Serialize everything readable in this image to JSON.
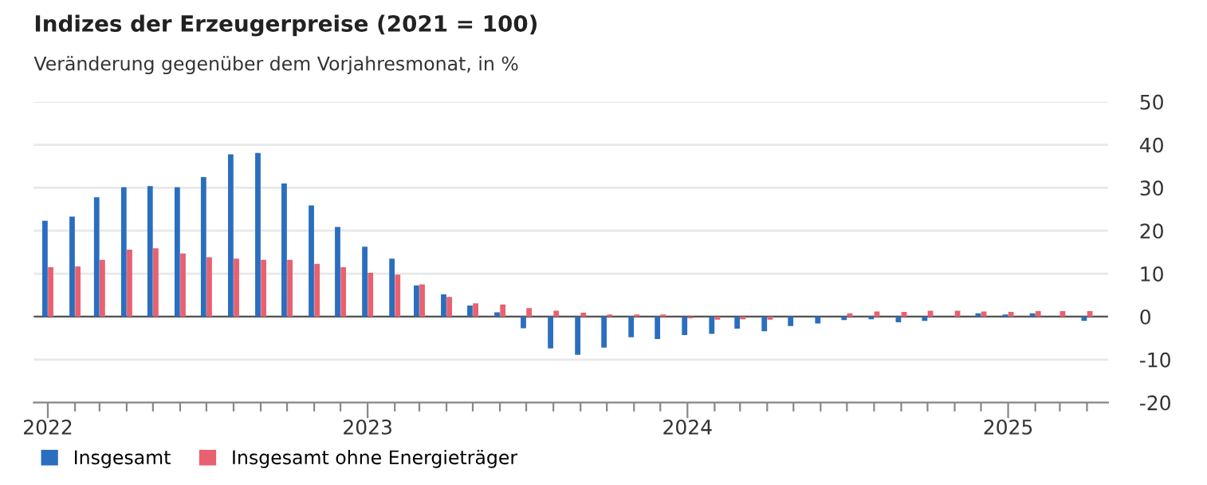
{
  "chart_data": {
    "type": "bar",
    "title": "Indizes der Erzeugerpreise (2021 = 100)",
    "subtitle": "Veränderung gegenüber dem Vorjahresmonat, in %",
    "x": [
      "2022-01",
      "2022-02",
      "2022-03",
      "2022-04",
      "2022-05",
      "2022-06",
      "2022-07",
      "2022-08",
      "2022-09",
      "2022-10",
      "2022-11",
      "2022-12",
      "2023-01",
      "2023-02",
      "2023-03",
      "2023-04",
      "2023-05",
      "2023-06",
      "2023-07",
      "2023-08",
      "2023-09",
      "2023-10",
      "2023-11",
      "2023-12",
      "2024-01",
      "2024-02",
      "2024-03",
      "2024-04",
      "2024-05",
      "2024-06",
      "2024-07",
      "2024-08",
      "2024-09",
      "2024-10",
      "2024-11",
      "2024-12",
      "2025-01",
      "2025-02",
      "2025-03",
      "2025-04"
    ],
    "series": [
      {
        "name": "Insgesamt",
        "color": "#2a6ebf",
        "values": [
          22.3,
          23.3,
          27.8,
          30.1,
          30.4,
          30.1,
          32.5,
          37.8,
          38.1,
          31.0,
          25.9,
          20.9,
          16.3,
          13.5,
          7.3,
          5.2,
          2.6,
          1.0,
          -2.7,
          -7.4,
          -8.9,
          -7.2,
          -4.8,
          -5.2,
          -4.3,
          -4.0,
          -2.8,
          -3.4,
          -2.2,
          -1.6,
          -0.8,
          -0.6,
          -1.3,
          -1.0,
          0.0,
          0.8,
          0.5,
          0.8,
          0.0,
          -1.0
        ]
      },
      {
        "name": "Insgesamt ohne Energieträger",
        "color": "#e8616f",
        "values": [
          11.5,
          11.7,
          13.2,
          15.6,
          15.9,
          14.7,
          13.8,
          13.5,
          13.2,
          13.2,
          12.3,
          11.5,
          10.2,
          9.8,
          7.5,
          4.6,
          3.1,
          2.8,
          2.0,
          1.4,
          0.9,
          0.5,
          0.5,
          0.5,
          -0.4,
          -0.7,
          -0.6,
          -0.7,
          0.0,
          0.0,
          0.8,
          1.2,
          1.1,
          1.4,
          1.4,
          1.2,
          1.1,
          1.3,
          1.3,
          1.3
        ]
      }
    ],
    "ylim": [
      -20,
      50
    ],
    "yticks": [
      -20,
      -10,
      0,
      10,
      20,
      30,
      40,
      50
    ],
    "xlim": [
      "2021-12-16",
      "2025-04-25"
    ],
    "xticks": [
      {
        "value": "2022-01",
        "label": "2022"
      },
      {
        "value": "2022-02",
        "label": null
      },
      {
        "value": "2022-03",
        "label": null
      },
      {
        "value": "2022-04",
        "label": null
      },
      {
        "value": "2022-05",
        "label": null
      },
      {
        "value": "2022-06",
        "label": null
      },
      {
        "value": "2022-07",
        "label": null
      },
      {
        "value": "2022-08",
        "label": null
      },
      {
        "value": "2022-09",
        "label": null
      },
      {
        "value": "2022-10",
        "label": null
      },
      {
        "value": "2022-11",
        "label": null
      },
      {
        "value": "2022-12",
        "label": null
      },
      {
        "value": "2023-01",
        "label": "2023"
      },
      {
        "value": "2023-02",
        "label": null
      },
      {
        "value": "2023-03",
        "label": null
      },
      {
        "value": "2023-04",
        "label": null
      },
      {
        "value": "2023-05",
        "label": null
      },
      {
        "value": "2023-06",
        "label": null
      },
      {
        "value": "2023-07",
        "label": null
      },
      {
        "value": "2023-08",
        "label": null
      },
      {
        "value": "2023-09",
        "label": null
      },
      {
        "value": "2023-10",
        "label": null
      },
      {
        "value": "2023-11",
        "label": null
      },
      {
        "value": "2023-12",
        "label": null
      },
      {
        "value": "2024-01",
        "label": "2024"
      },
      {
        "value": "2024-02",
        "label": null
      },
      {
        "value": "2024-03",
        "label": null
      },
      {
        "value": "2024-04",
        "label": null
      },
      {
        "value": "2024-05",
        "label": null
      },
      {
        "value": "2024-06",
        "label": null
      },
      {
        "value": "2024-07",
        "label": null
      },
      {
        "value": "2024-08",
        "label": null
      },
      {
        "value": "2024-09",
        "label": null
      },
      {
        "value": "2024-10",
        "label": null
      },
      {
        "value": "2024-11",
        "label": null
      },
      {
        "value": "2024-12",
        "label": null
      },
      {
        "value": "2025-01",
        "label": "2025"
      },
      {
        "value": "2025-02",
        "label": null
      },
      {
        "value": "2025-03",
        "label": null
      },
      {
        "value": "2025-04",
        "label": null
      }
    ],
    "grid": "y",
    "legend": "bottom left"
  }
}
